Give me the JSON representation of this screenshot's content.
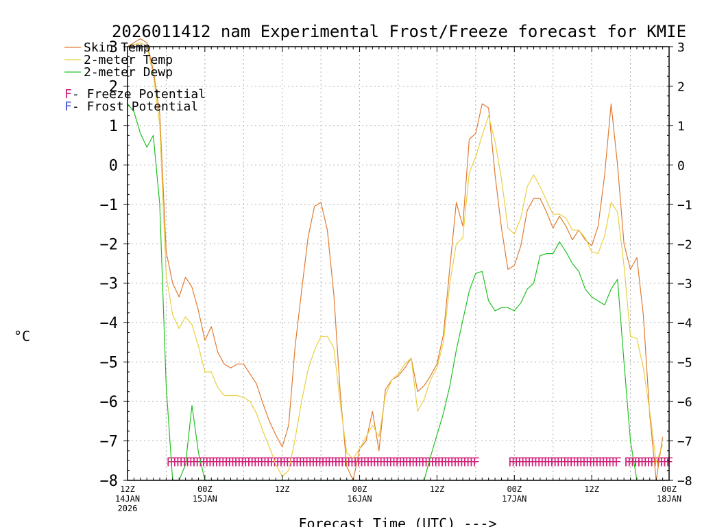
{
  "chart_data": {
    "type": "line",
    "title": "2026011412 nam Experimental Frost/Freeze forecast for KMIE",
    "xlabel": "Forecast Time (UTC) --->",
    "ylabel": "°C",
    "ylim": [
      -8,
      3
    ],
    "xlim": [
      0,
      84
    ],
    "yticks": [
      -8,
      -7,
      -6,
      -5,
      -4,
      -3,
      -2,
      -1,
      0,
      1,
      2,
      3
    ],
    "x_unit": "forecast hour",
    "xticks": [
      {
        "x": 0,
        "line1": "12Z",
        "line2": "14JAN",
        "line3": "2026"
      },
      {
        "x": 12,
        "line1": "00Z",
        "line2": "15JAN",
        "line3": ""
      },
      {
        "x": 24,
        "line1": "12Z",
        "line2": "",
        "line3": ""
      },
      {
        "x": 36,
        "line1": "00Z",
        "line2": "16JAN",
        "line3": ""
      },
      {
        "x": 48,
        "line1": "12Z",
        "line2": "",
        "line3": ""
      },
      {
        "x": 60,
        "line1": "00Z",
        "line2": "17JAN",
        "line3": ""
      },
      {
        "x": 72,
        "line1": "12Z",
        "line2": "",
        "line3": ""
      },
      {
        "x": 84,
        "line1": "00Z",
        "line2": "18JAN",
        "line3": ""
      }
    ],
    "legend": [
      {
        "label": "Skin Temp",
        "color": "#e07a30"
      },
      {
        "label": "2-meter Temp",
        "color": "#e8d040"
      },
      {
        "label": "2-meter Dewp",
        "color": "#20c020"
      }
    ],
    "marker_legend": [
      {
        "symbol": "F",
        "label": " - Freeze Potential",
        "color": "#d0207a"
      },
      {
        "symbol": "F",
        "label": " - Frost Potential",
        "color": "#4050e0"
      }
    ],
    "freeze_marker": {
      "symbol": "F",
      "color": "#d0207a",
      "y": -7.5,
      "ranges": [
        [
          6,
          54
        ],
        [
          59,
          76
        ],
        [
          77,
          84
        ]
      ]
    },
    "series": [
      {
        "name": "Skin Temp",
        "color": "#e07a30",
        "points": [
          [
            0,
            3
          ],
          [
            2,
            3.2
          ],
          [
            3,
            3.1
          ],
          [
            4,
            2.4
          ],
          [
            5,
            1.3
          ],
          [
            6,
            -2.2
          ],
          [
            7,
            -3.0
          ],
          [
            8,
            -3.35
          ],
          [
            9,
            -2.85
          ],
          [
            10,
            -3.1
          ],
          [
            11,
            -3.7
          ],
          [
            12,
            -4.45
          ],
          [
            13,
            -4.1
          ],
          [
            14,
            -4.75
          ],
          [
            15,
            -5.05
          ],
          [
            16,
            -5.15
          ],
          [
            17,
            -5.05
          ],
          [
            18,
            -5.05
          ],
          [
            19,
            -5.3
          ],
          [
            20,
            -5.55
          ],
          [
            21,
            -6.05
          ],
          [
            22,
            -6.5
          ],
          [
            23,
            -6.85
          ],
          [
            24,
            -7.15
          ],
          [
            25,
            -6.6
          ],
          [
            26,
            -4.6
          ],
          [
            27,
            -3.2
          ],
          [
            28,
            -1.85
          ],
          [
            29,
            -1.05
          ],
          [
            30,
            -0.95
          ],
          [
            31,
            -1.65
          ],
          [
            32,
            -3.3
          ],
          [
            33,
            -5.8
          ],
          [
            34,
            -7.65
          ],
          [
            35,
            -8.0
          ],
          [
            36,
            -7.2
          ],
          [
            37,
            -7.0
          ],
          [
            38,
            -6.25
          ],
          [
            39,
            -7.25
          ],
          [
            40,
            -5.7
          ],
          [
            41,
            -5.45
          ],
          [
            42,
            -5.35
          ],
          [
            43,
            -5.15
          ],
          [
            44,
            -4.9
          ],
          [
            45,
            -5.75
          ],
          [
            46,
            -5.6
          ],
          [
            47,
            -5.35
          ],
          [
            48,
            -5.05
          ],
          [
            49,
            -4.3
          ],
          [
            50,
            -2.6
          ],
          [
            51,
            -0.95
          ],
          [
            52,
            -1.55
          ],
          [
            53,
            0.65
          ],
          [
            54,
            0.8
          ],
          [
            55,
            1.55
          ],
          [
            56,
            1.45
          ],
          [
            57,
            -0.25
          ],
          [
            58,
            -1.6
          ],
          [
            59,
            -2.65
          ],
          [
            60,
            -2.55
          ],
          [
            61,
            -2.05
          ],
          [
            62,
            -1.15
          ],
          [
            63,
            -0.85
          ],
          [
            64,
            -0.85
          ],
          [
            65,
            -1.2
          ],
          [
            66,
            -1.6
          ],
          [
            67,
            -1.3
          ],
          [
            68,
            -1.55
          ],
          [
            69,
            -1.9
          ],
          [
            70,
            -1.65
          ],
          [
            71,
            -1.9
          ],
          [
            72,
            -2.05
          ],
          [
            73,
            -1.55
          ],
          [
            74,
            -0.25
          ],
          [
            75,
            1.55
          ],
          [
            76,
            0.0
          ],
          [
            77,
            -2.0
          ],
          [
            78,
            -2.65
          ],
          [
            79,
            -2.35
          ],
          [
            80,
            -3.8
          ],
          [
            81,
            -6.35
          ],
          [
            82,
            -8.0
          ],
          [
            83,
            -6.9
          ]
        ]
      },
      {
        "name": "2-meter Temp",
        "color": "#e8d040",
        "points": [
          [
            0,
            3
          ],
          [
            2,
            3.1
          ],
          [
            3,
            3.0
          ],
          [
            4,
            2.3
          ],
          [
            5,
            1.0
          ],
          [
            6,
            -2.8
          ],
          [
            7,
            -3.8
          ],
          [
            8,
            -4.15
          ],
          [
            9,
            -3.85
          ],
          [
            10,
            -4.05
          ],
          [
            11,
            -4.6
          ],
          [
            12,
            -5.25
          ],
          [
            13,
            -5.25
          ],
          [
            14,
            -5.65
          ],
          [
            15,
            -5.85
          ],
          [
            16,
            -5.85
          ],
          [
            17,
            -5.85
          ],
          [
            18,
            -5.9
          ],
          [
            19,
            -6.0
          ],
          [
            20,
            -6.3
          ],
          [
            21,
            -6.75
          ],
          [
            22,
            -7.15
          ],
          [
            23,
            -7.6
          ],
          [
            24,
            -7.9
          ],
          [
            25,
            -7.75
          ],
          [
            26,
            -6.95
          ],
          [
            27,
            -6.0
          ],
          [
            28,
            -5.2
          ],
          [
            29,
            -4.7
          ],
          [
            30,
            -4.35
          ],
          [
            31,
            -4.35
          ],
          [
            32,
            -4.65
          ],
          [
            33,
            -6.05
          ],
          [
            34,
            -7.3
          ],
          [
            35,
            -7.45
          ],
          [
            36,
            -7.2
          ],
          [
            37,
            -6.9
          ],
          [
            38,
            -6.6
          ],
          [
            39,
            -6.9
          ],
          [
            40,
            -5.85
          ],
          [
            41,
            -5.45
          ],
          [
            42,
            -5.3
          ],
          [
            43,
            -5.05
          ],
          [
            44,
            -4.9
          ],
          [
            45,
            -6.25
          ],
          [
            46,
            -5.95
          ],
          [
            47,
            -5.45
          ],
          [
            48,
            -5.15
          ],
          [
            49,
            -4.5
          ],
          [
            50,
            -3.0
          ],
          [
            51,
            -2.0
          ],
          [
            52,
            -1.85
          ],
          [
            53,
            -0.2
          ],
          [
            54,
            0.2
          ],
          [
            55,
            0.75
          ],
          [
            56,
            1.25
          ],
          [
            57,
            0.6
          ],
          [
            58,
            -0.35
          ],
          [
            59,
            -1.6
          ],
          [
            60,
            -1.75
          ],
          [
            61,
            -1.35
          ],
          [
            62,
            -0.55
          ],
          [
            63,
            -0.25
          ],
          [
            64,
            -0.55
          ],
          [
            65,
            -0.9
          ],
          [
            66,
            -1.25
          ],
          [
            67,
            -1.25
          ],
          [
            68,
            -1.35
          ],
          [
            69,
            -1.65
          ],
          [
            70,
            -1.65
          ],
          [
            71,
            -1.85
          ],
          [
            72,
            -2.2
          ],
          [
            73,
            -2.25
          ],
          [
            74,
            -1.8
          ],
          [
            75,
            -0.95
          ],
          [
            76,
            -1.2
          ],
          [
            77,
            -2.55
          ],
          [
            78,
            -4.35
          ],
          [
            79,
            -4.4
          ],
          [
            80,
            -5.15
          ],
          [
            81,
            -6.25
          ],
          [
            82,
            -7.55
          ],
          [
            83,
            -7.1
          ]
        ]
      },
      {
        "name": "2-meter Dewp",
        "color": "#20c020",
        "points": [
          [
            0,
            1.55
          ],
          [
            1,
            1.35
          ],
          [
            2,
            0.8
          ],
          [
            3,
            0.45
          ],
          [
            4,
            0.75
          ],
          [
            5,
            -1.0
          ],
          [
            6,
            -5.6
          ],
          [
            7,
            -8.0
          ],
          [
            8,
            -8.0
          ],
          [
            9,
            -7.6
          ],
          [
            10,
            -6.1
          ],
          [
            11,
            -7.3
          ],
          [
            12,
            -8.0
          ],
          [
            46,
            -8.0
          ],
          [
            47,
            -7.4
          ],
          [
            48,
            -6.85
          ],
          [
            49,
            -6.3
          ],
          [
            50,
            -5.6
          ],
          [
            51,
            -4.7
          ],
          [
            52,
            -3.95
          ],
          [
            53,
            -3.2
          ],
          [
            54,
            -2.75
          ],
          [
            55,
            -2.7
          ],
          [
            56,
            -3.45
          ],
          [
            57,
            -3.7
          ],
          [
            58,
            -3.62
          ],
          [
            59,
            -3.62
          ],
          [
            60,
            -3.7
          ],
          [
            61,
            -3.5
          ],
          [
            62,
            -3.15
          ],
          [
            63,
            -3.0
          ],
          [
            64,
            -2.3
          ],
          [
            65,
            -2.25
          ],
          [
            66,
            -2.25
          ],
          [
            67,
            -1.95
          ],
          [
            68,
            -2.2
          ],
          [
            69,
            -2.5
          ],
          [
            70,
            -2.7
          ],
          [
            71,
            -3.15
          ],
          [
            72,
            -3.35
          ],
          [
            73,
            -3.45
          ],
          [
            74,
            -3.55
          ],
          [
            75,
            -3.15
          ],
          [
            76,
            -2.9
          ],
          [
            77,
            -5.0
          ],
          [
            78,
            -7.0
          ],
          [
            79,
            -8.0
          ]
        ]
      }
    ]
  }
}
